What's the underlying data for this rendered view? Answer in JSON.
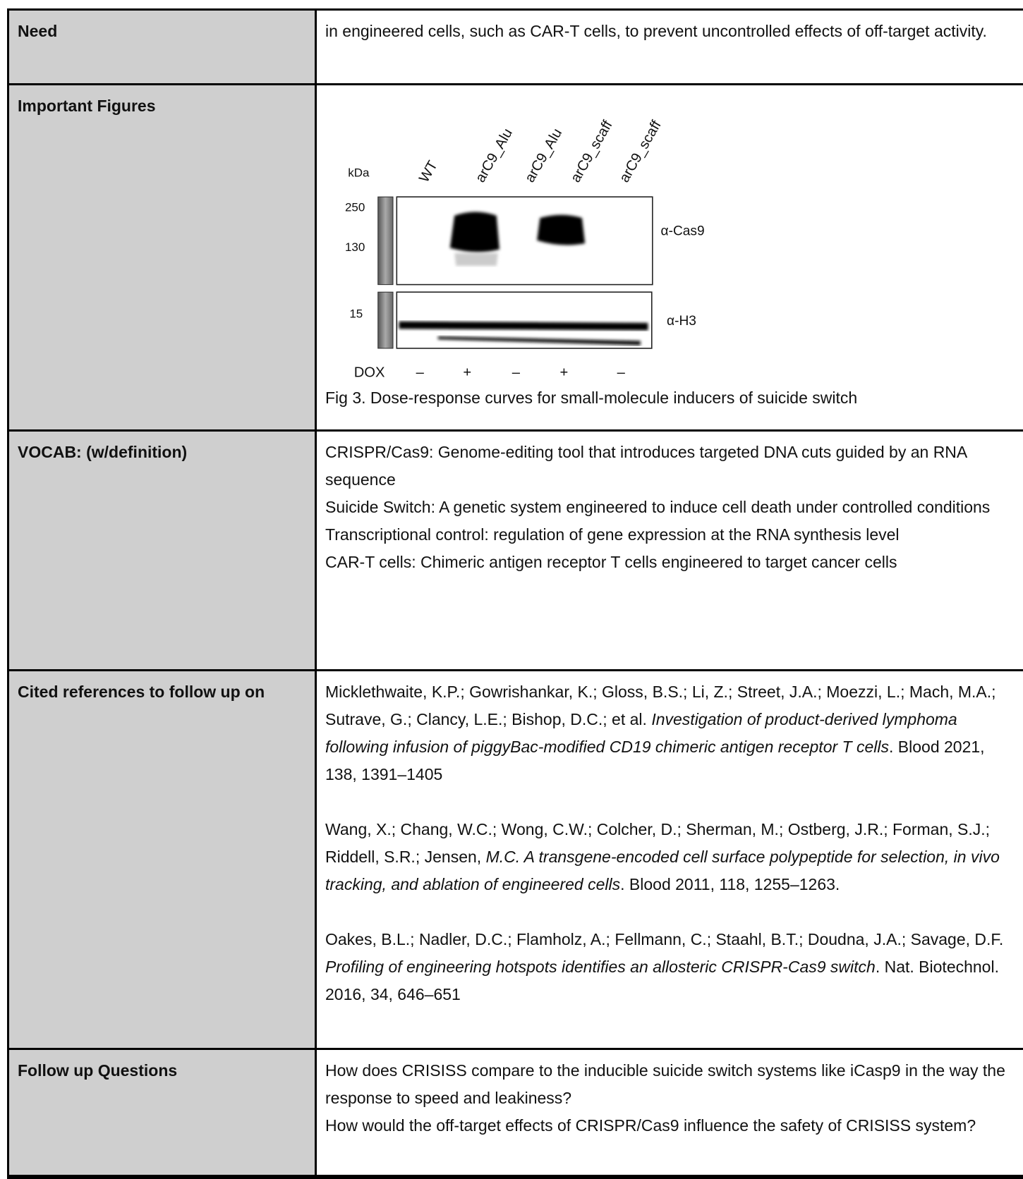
{
  "rows": [
    {
      "label": "Need",
      "text": "in engineered cells, such as CAR-T cells, to prevent uncontrolled effects of off-target activity."
    },
    {
      "label": "Important Figures",
      "figure": {
        "unit_label": "kDa",
        "lanes": [
          "WT",
          "arC9_Alu",
          "arC9_Alu",
          "arC9_scaff",
          "arC9_scaff"
        ],
        "markers_top": [
          "250",
          "130"
        ],
        "markers_bottom": [
          "15"
        ],
        "antibodies": [
          "α-Cas9",
          "α-H3"
        ],
        "treatment_label": "DOX",
        "treatment": [
          "–",
          "+",
          "–",
          "+",
          "–"
        ]
      },
      "caption": "Fig 3. Dose-response curves for small-molecule inducers of suicide switch"
    },
    {
      "label": "VOCAB: (w/definition)",
      "lines": [
        "CRISPR/Cas9: Genome-editing tool that introduces targeted DNA cuts guided by an RNA sequence",
        "Suicide Switch: A genetic system engineered to induce cell death under controlled conditions",
        "Transcriptional control: regulation of gene expression at the RNA synthesis level",
        "CAR-T cells: Chimeric antigen receptor T cells engineered to target cancer cells"
      ]
    },
    {
      "label": "Cited references to follow up on",
      "references": [
        {
          "authors": "Micklethwaite, K.P.; Gowrishankar, K.; Gloss, B.S.; Li, Z.; Street, J.A.; Moezzi, L.; Mach, M.A.; Sutrave, G.; Clancy, L.E.; Bishop, D.C.; et al. ",
          "title": "Investigation of product-derived lymphoma following infusion of piggyBac-modified CD19 chimeric antigen receptor T cells",
          "source": ". Blood 2021, 138, 1391–1405"
        },
        {
          "authors": "Wang, X.; Chang, W.C.; Wong, C.W.; Colcher, D.; Sherman, M.; Ostberg, J.R.; Forman, S.J.; Riddell, S.R.; Jensen, ",
          "title": "M.C. A transgene-encoded cell surface polypeptide for selection, in vivo tracking, and ablation of engineered cells",
          "source": ". Blood 2011, 118, 1255–1263."
        },
        {
          "authors": "Oakes, B.L.; Nadler, D.C.; Flamholz, A.; Fellmann, C.; Staahl, B.T.; Doudna, J.A.; Savage, D.F. ",
          "title": "Profiling of engineering hotspots identifies an allosteric CRISPR-Cas9 switch",
          "source": ". Nat. Biotechnol. 2016, 34, 646–651"
        }
      ]
    },
    {
      "label": "Follow up Questions",
      "lines": [
        "How does CRISISS compare to the inducible suicide switch systems like iCasp9 in the way the response to speed and leakiness?",
        "How would the off-target effects of CRISPR/Cas9 influence the safety of CRISISS system?"
      ]
    }
  ]
}
